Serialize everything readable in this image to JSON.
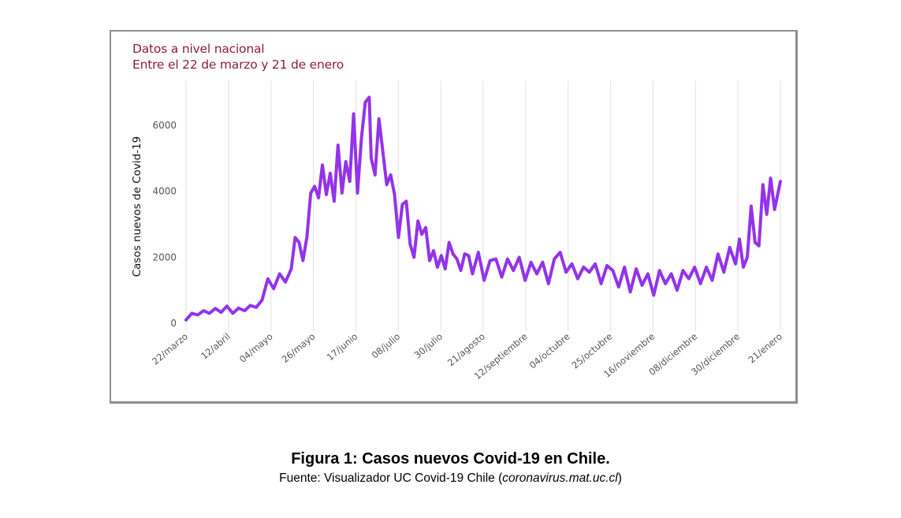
{
  "header": {
    "subtitle_line1": "Datos a nivel nacional",
    "subtitle_line2": "Entre el 22 de marzo y 21 de enero"
  },
  "caption": {
    "title": "Figura 1: Casos nuevos Covid-19 en Chile.",
    "source_prefix": "Fuente: Visualizador UC Covid-19 Chile (",
    "source_link": "coronavirus.mat.uc.cl",
    "source_suffix": ")"
  },
  "colors": {
    "line": "#9333ea",
    "subtitle": "#8c1c45",
    "grid": "#e6e6e6",
    "tick_text": "#555555",
    "frame": "#8f8f8f"
  },
  "chart_data": {
    "type": "line",
    "title": "Datos a nivel nacional",
    "subtitle": "Entre el 22 de marzo y 21 de enero",
    "xlabel": "",
    "ylabel": "Casos nuevos de Covid-19",
    "ylim": [
      0,
      7000
    ],
    "yticks": [
      0,
      2000,
      4000,
      6000
    ],
    "grid": "vertical",
    "xtick_labels": [
      "22/marzo",
      "12/abril",
      "04/mayo",
      "26/mayo",
      "17/junio",
      "08/julio",
      "30/julio",
      "21/agosto",
      "12/septiembre",
      "04/octubre",
      "25/octubre",
      "16/noviembre",
      "08/diciembre",
      "30/diciembre",
      "21/enero"
    ],
    "x_units": "days since 22/marzo",
    "xlim": [
      0,
      305
    ],
    "series": [
      {
        "name": "Casos nuevos",
        "x": [
          0,
          3,
          6,
          9,
          12,
          15,
          18,
          21,
          24,
          27,
          30,
          33,
          36,
          39,
          42,
          45,
          48,
          51,
          54,
          56,
          58,
          60,
          62,
          64,
          66,
          68,
          70,
          72,
          74,
          76,
          78,
          80,
          82,
          84,
          86,
          88,
          90,
          92,
          94,
          95,
          97,
          99,
          101,
          103,
          105,
          107,
          109,
          111,
          113,
          115,
          117,
          119,
          121,
          123,
          125,
          127,
          129,
          131,
          133,
          135,
          137,
          139,
          141,
          143,
          145,
          147,
          150,
          153,
          156,
          159,
          162,
          165,
          168,
          171,
          174,
          177,
          180,
          183,
          186,
          189,
          192,
          195,
          198,
          201,
          204,
          207,
          210,
          213,
          216,
          219,
          222,
          225,
          228,
          231,
          234,
          237,
          240,
          243,
          246,
          249,
          252,
          255,
          258,
          261,
          264,
          267,
          270,
          273,
          276,
          279,
          282,
          284,
          286,
          288,
          290,
          292,
          294,
          296,
          298,
          300,
          302,
          305
        ],
        "values": [
          100,
          300,
          250,
          380,
          300,
          450,
          330,
          520,
          300,
          460,
          380,
          540,
          480,
          700,
          1350,
          1050,
          1500,
          1250,
          1650,
          2600,
          2450,
          1900,
          2600,
          3950,
          4150,
          3800,
          4800,
          3900,
          4550,
          3700,
          5400,
          3950,
          4900,
          4300,
          6350,
          3950,
          5600,
          6700,
          6850,
          5000,
          4500,
          6200,
          5200,
          4200,
          4500,
          3900,
          2600,
          3600,
          3700,
          2400,
          2000,
          3100,
          2700,
          2900,
          1900,
          2200,
          1700,
          2050,
          1650,
          2450,
          2100,
          1950,
          1600,
          2100,
          2050,
          1500,
          2150,
          1300,
          1900,
          1950,
          1400,
          1950,
          1600,
          2000,
          1300,
          1850,
          1500,
          1850,
          1200,
          1950,
          2150,
          1550,
          1800,
          1350,
          1700,
          1550,
          1800,
          1200,
          1750,
          1600,
          1100,
          1700,
          950,
          1650,
          1150,
          1500,
          850,
          1600,
          1200,
          1500,
          1000,
          1600,
          1350,
          1700,
          1200,
          1700,
          1300,
          2100,
          1550,
          2300,
          1800,
          2550,
          1700,
          2000,
          3550,
          2450,
          2350,
          4200,
          3300,
          4400,
          3450,
          4300
        ]
      }
    ]
  }
}
